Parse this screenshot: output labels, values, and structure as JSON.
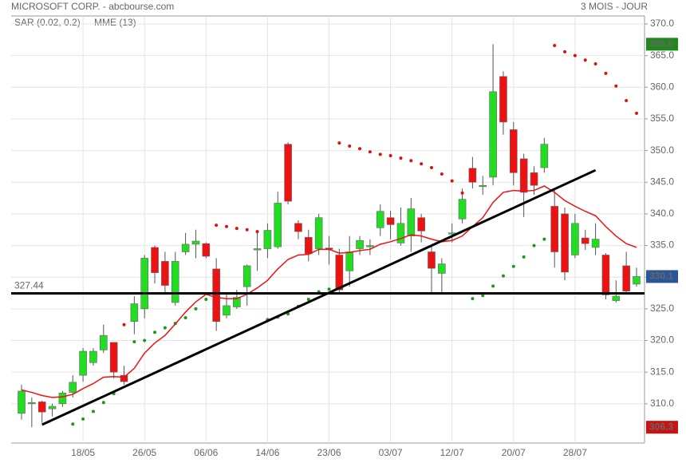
{
  "chart_data": {
    "type": "candlestick",
    "title": "MICROSOFT CORP. - abcbourse.com",
    "subtitle": "3 MOIS - JOUR",
    "categories": [
      null,
      null,
      null,
      null,
      null,
      null,
      "18/05",
      null,
      null,
      null,
      null,
      null,
      "26/05",
      null,
      null,
      null,
      null,
      null,
      "06/06",
      null,
      null,
      null,
      null,
      null,
      "14/06",
      null,
      null,
      null,
      null,
      null,
      "23/06",
      null,
      null,
      null,
      null,
      null,
      "03/07",
      null,
      null,
      null,
      null,
      null,
      "12/07",
      null,
      null,
      null,
      null,
      null,
      "20/07",
      null,
      null,
      null,
      null,
      null,
      "28/07",
      null,
      null,
      null,
      null,
      null,
      null
    ],
    "open": [
      308.5,
      310,
      310.3,
      309.2,
      310,
      311.8,
      314.5,
      316.5,
      318.5,
      319.7,
      314.5,
      323,
      325,
      334.7,
      332.5,
      326,
      334,
      335.2,
      335.3,
      331.3,
      324,
      325.3,
      328.5,
      334.3,
      334.5,
      334.8,
      351,
      338.5,
      336.3,
      334.5,
      334.6,
      333.5,
      331,
      334.5,
      334.8,
      337.8,
      339.4,
      335.4,
      336.5,
      339.4,
      334,
      330.6,
      336.8,
      339.2,
      347.2,
      344.3,
      345.8,
      361.7,
      353.3,
      348.7,
      346.5,
      347.3,
      341.2,
      340,
      333.5,
      336.2,
      334.7,
      333.5,
      326.3,
      331.8,
      328.9
    ],
    "high": [
      313,
      311,
      310.5,
      310,
      312,
      314.5,
      318.8,
      318.8,
      322.5,
      319.7,
      316,
      327,
      333.5,
      335,
      334,
      334,
      337,
      337.5,
      335.5,
      333,
      327.5,
      328,
      332,
      337,
      338.5,
      343.5,
      351.3,
      339,
      337.5,
      340,
      336.5,
      334.5,
      336.5,
      336.5,
      336,
      341.5,
      340.5,
      341,
      342.5,
      340,
      335,
      333,
      338.5,
      344,
      349,
      346,
      366.8,
      362.5,
      354.5,
      349.5,
      347.5,
      352,
      344,
      341,
      340,
      337.5,
      338.5,
      333.8,
      329.5,
      334,
      331.5
    ],
    "low": [
      307.5,
      306.3,
      307,
      308,
      309.5,
      311,
      313.5,
      316,
      318,
      314,
      313,
      321,
      323.5,
      329,
      327.5,
      325.5,
      333.5,
      333,
      333,
      321.5,
      323.5,
      325,
      325.5,
      331,
      333,
      334.5,
      341.5,
      336,
      332.5,
      333.5,
      332,
      327.5,
      328.5,
      333.5,
      333.5,
      336.5,
      336,
      335,
      334,
      335.5,
      327.5,
      327.5,
      335.5,
      338.5,
      344,
      343,
      344.5,
      352.5,
      344.5,
      339.5,
      343,
      346.5,
      331.5,
      329.5,
      333,
      334.3,
      333.5,
      326.5,
      326,
      327.5,
      328.5
    ],
    "close": [
      312,
      310.2,
      308.7,
      309.6,
      311.7,
      313.4,
      318.3,
      318.3,
      320.8,
      315,
      313.5,
      325.8,
      333,
      330.7,
      328.7,
      332.5,
      335.2,
      335.7,
      333.3,
      323,
      325.5,
      326.8,
      331.8,
      334.5,
      337.4,
      341.7,
      342,
      337.2,
      333.7,
      339.4,
      334.4,
      328,
      334,
      335.8,
      335,
      340.4,
      338.3,
      338.5,
      340.8,
      337.3,
      331.4,
      332.1,
      337,
      342.3,
      345,
      344.5,
      359.3,
      354.5,
      346.5,
      343.4,
      344.5,
      351,
      334,
      330.8,
      338.5,
      335.3,
      336,
      327.2,
      327,
      327.8,
      330.1
    ],
    "up_color": "#22dd22",
    "down_color": "#ee1111",
    "indicators": [
      {
        "name": "SAR (0.02, 0.2)",
        "style": "dots",
        "color": "#dd1111",
        "values": [
          null,
          null,
          null,
          null,
          null,
          306.8,
          307.6,
          308.8,
          310.2,
          311.6,
          322.5,
          319.8,
          320,
          321.3,
          322,
          322.7,
          323.6,
          325,
          326.5,
          338.2,
          338,
          337.7,
          337.5,
          337.2,
          323.3,
          323.7,
          324.2,
          325.4,
          326.5,
          327.7,
          328.1,
          351.2,
          350.7,
          350.3,
          349.8,
          349.4,
          349.2,
          348.8,
          348.4,
          347.9,
          347.3,
          346.3,
          345.2,
          343.3,
          326.6,
          327.1,
          328.6,
          330.2,
          331.7,
          333.2,
          335,
          336,
          366.6,
          365.6,
          365,
          364.3,
          363.7,
          362.2,
          360.2,
          357.9,
          355.9
        ]
      },
      {
        "name": "MME (13)",
        "style": "line",
        "color": "#ee1111",
        "values": [
          312.2,
          311.8,
          311.3,
          311,
          311.1,
          311.5,
          312.4,
          313.2,
          314.2,
          314.3,
          314.2,
          315.6,
          318,
          319.6,
          320.8,
          322.6,
          324.5,
          326.1,
          327.3,
          326.8,
          326.6,
          326.6,
          327.3,
          328.3,
          329.5,
          331.3,
          332.8,
          333.5,
          333.6,
          334.4,
          334.4,
          333.8,
          333.9,
          334.2,
          334.4,
          335.2,
          335.6,
          336.1,
          336.7,
          336.5,
          336,
          335.6,
          335.8,
          336.5,
          338,
          339.4,
          341.8,
          343.4,
          343.7,
          343.6,
          343.7,
          344.4,
          343.4,
          342.1,
          341.2,
          340.4,
          339.7,
          338,
          336.5,
          335.3,
          334.7
        ]
      }
    ],
    "trendline": {
      "x": [
        2,
        56
      ],
      "y": [
        306.7,
        346.9
      ]
    },
    "hline": {
      "value": 327.44,
      "label": "327.44"
    },
    "price_tags": [
      {
        "value": 366.8,
        "label": "366.8",
        "color": "#1e8a1e"
      },
      {
        "value": 330.1,
        "label": "330.1",
        "color": "#2a5599"
      },
      {
        "value": 306.3,
        "label": "306.3",
        "color": "#cc1111"
      }
    ],
    "ylim": [
      303.8,
      371.26
    ],
    "yticks": [
      {
        "value": 370,
        "label": "370.0"
      },
      {
        "value": 365,
        "label": "365.0"
      },
      {
        "value": 360,
        "label": "360.0"
      },
      {
        "value": 355,
        "label": "355.0"
      },
      {
        "value": 350,
        "label": "350.0"
      },
      {
        "value": 345,
        "label": "345.0"
      },
      {
        "value": 340,
        "label": "340.0"
      },
      {
        "value": 335,
        "label": "335.0"
      },
      {
        "value": 330,
        "label": "330.0"
      },
      {
        "value": 325,
        "label": "325.0"
      },
      {
        "value": 320,
        "label": "320.0"
      },
      {
        "value": 315,
        "label": "315.0"
      },
      {
        "value": 310,
        "label": "310.0"
      }
    ],
    "grid": true
  }
}
